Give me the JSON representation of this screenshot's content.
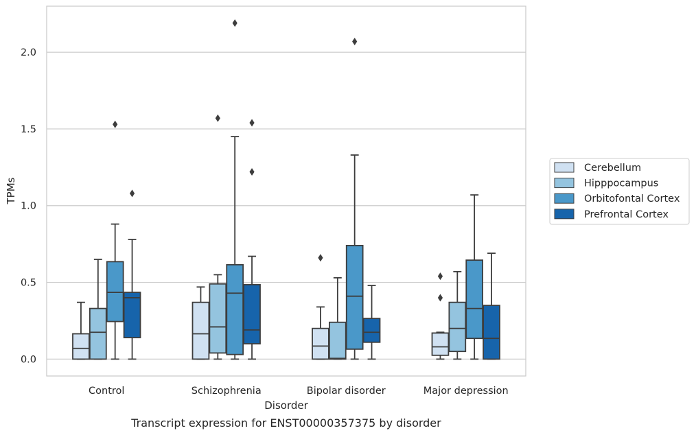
{
  "caption": "Transcript expression for ENST00000357375 by disorder",
  "chart_data": {
    "type": "boxplot",
    "title": "",
    "xlabel": "Disorder",
    "ylabel": "TPMs",
    "categories": [
      "Control",
      "Schizophrenia",
      "Bipolar disorder",
      "Major depression"
    ],
    "ylim": [
      -0.11,
      2.3
    ],
    "yticks": [
      0.0,
      0.5,
      1.0,
      1.5,
      2.0
    ],
    "ytick_labels": [
      "0.0",
      "0.5",
      "1.0",
      "1.5",
      "2.0"
    ],
    "grid": "horizontal",
    "legend_position": "right",
    "series": [
      {
        "name": "Cerebellum",
        "color": "#d0e1f2",
        "boxes": [
          {
            "whisker_low": 0.0,
            "q1": 0.0,
            "median": 0.07,
            "q3": 0.165,
            "whisker_high": 0.37,
            "outliers": []
          },
          {
            "whisker_low": 0.0,
            "q1": 0.0,
            "median": 0.165,
            "q3": 0.37,
            "whisker_high": 0.47,
            "outliers": []
          },
          {
            "whisker_low": 0.0,
            "q1": 0.0,
            "median": 0.085,
            "q3": 0.2,
            "whisker_high": 0.34,
            "outliers": [
              0.66
            ]
          },
          {
            "whisker_low": 0.0,
            "q1": 0.025,
            "median": 0.08,
            "q3": 0.17,
            "whisker_high": 0.175,
            "outliers": [
              0.4,
              0.54
            ]
          }
        ]
      },
      {
        "name": "Hipppocampus",
        "color": "#94c4df",
        "boxes": [
          {
            "whisker_low": 0.0,
            "q1": 0.0,
            "median": 0.175,
            "q3": 0.33,
            "whisker_high": 0.65,
            "outliers": []
          },
          {
            "whisker_low": 0.0,
            "q1": 0.04,
            "median": 0.21,
            "q3": 0.49,
            "whisker_high": 0.55,
            "outliers": [
              1.57
            ]
          },
          {
            "whisker_low": 0.0,
            "q1": 0.0,
            "median": 0.005,
            "q3": 0.24,
            "whisker_high": 0.53,
            "outliers": []
          },
          {
            "whisker_low": 0.0,
            "q1": 0.05,
            "median": 0.2,
            "q3": 0.37,
            "whisker_high": 0.57,
            "outliers": []
          }
        ]
      },
      {
        "name": "Orbitofontal Cortex",
        "color": "#4a98c9",
        "boxes": [
          {
            "whisker_low": 0.0,
            "q1": 0.245,
            "median": 0.435,
            "q3": 0.635,
            "whisker_high": 0.88,
            "outliers": [
              1.53
            ]
          },
          {
            "whisker_low": 0.0,
            "q1": 0.03,
            "median": 0.43,
            "q3": 0.615,
            "whisker_high": 1.45,
            "outliers": [
              2.19
            ]
          },
          {
            "whisker_low": 0.0,
            "q1": 0.065,
            "median": 0.41,
            "q3": 0.74,
            "whisker_high": 1.33,
            "outliers": [
              2.07
            ]
          },
          {
            "whisker_low": 0.0,
            "q1": 0.135,
            "median": 0.33,
            "q3": 0.645,
            "whisker_high": 1.07,
            "outliers": []
          }
        ]
      },
      {
        "name": "Prefrontal Cortex",
        "color": "#1764ab",
        "boxes": [
          {
            "whisker_low": 0.0,
            "q1": 0.14,
            "median": 0.4,
            "q3": 0.435,
            "whisker_high": 0.78,
            "outliers": [
              1.08
            ]
          },
          {
            "whisker_low": 0.0,
            "q1": 0.1,
            "median": 0.19,
            "q3": 0.485,
            "whisker_high": 0.67,
            "outliers": [
              1.22,
              1.54
            ]
          },
          {
            "whisker_low": 0.0,
            "q1": 0.11,
            "median": 0.175,
            "q3": 0.265,
            "whisker_high": 0.48,
            "outliers": []
          },
          {
            "whisker_low": 0.0,
            "q1": 0.0,
            "median": 0.135,
            "q3": 0.35,
            "whisker_high": 0.69,
            "outliers": []
          }
        ]
      }
    ]
  }
}
